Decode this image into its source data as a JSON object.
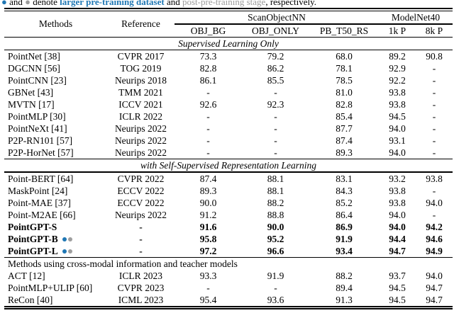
{
  "colors": {
    "accent_blue": "#1f77b4",
    "accent_gray": "#9e9e9e"
  },
  "caption": {
    "bullet1": "●",
    "seg1": " and ",
    "bullet2": "●",
    "seg2": " denote ",
    "highlight_blue": "larger pre-training dataset",
    "seg3": " and ",
    "highlight_gray": "post-pre-training stage",
    "seg4": ", respectively."
  },
  "header": {
    "methods": "Methods",
    "reference": "Reference",
    "group1": "ScanObjectNN",
    "group2": "ModelNet40",
    "subcols": [
      "OBJ_BG",
      "OBJ_ONLY",
      "PB_T50_RS",
      "1k P",
      "8k P"
    ]
  },
  "chart_data": {
    "type": "table",
    "columns": [
      "Methods",
      "Reference",
      "OBJ_BG",
      "OBJ_ONLY",
      "PB_T50_RS",
      "1k P",
      "8k P"
    ],
    "sections": [
      {
        "title": "Supervised Learning Only",
        "rows": [
          {
            "method": "PointNet [38]",
            "ref": "CVPR 2017",
            "vals": [
              "73.3",
              "79.2",
              "68.0",
              "89.2",
              "90.8"
            ]
          },
          {
            "method": "DGCNN [56]",
            "ref": "TOG 2019",
            "vals": [
              "82.8",
              "86.2",
              "78.1",
              "92.9",
              "-"
            ]
          },
          {
            "method": "PointCNN [23]",
            "ref": "Neurips 2018",
            "vals": [
              "86.1",
              "85.5",
              "78.5",
              "92.2",
              "-"
            ]
          },
          {
            "method": "GBNet [43]",
            "ref": "TMM 2021",
            "vals": [
              "-",
              "-",
              "81.0",
              "93.8",
              "-"
            ]
          },
          {
            "method": "MVTN [17]",
            "ref": "ICCV 2021",
            "vals": [
              "92.6",
              "92.3",
              "82.8",
              "93.8",
              "-"
            ]
          },
          {
            "method": "PointMLP [30]",
            "ref": "ICLR 2022",
            "vals": [
              "-",
              "-",
              "85.4",
              "94.5",
              "-"
            ]
          },
          {
            "method": "PointNeXt [41]",
            "ref": "Neurips 2022",
            "vals": [
              "-",
              "-",
              "87.7",
              "94.0",
              "-"
            ]
          },
          {
            "method": "P2P-RN101 [57]",
            "ref": "Neurips 2022",
            "vals": [
              "-",
              "-",
              "87.4",
              "93.1",
              "-"
            ]
          },
          {
            "method": "P2P-HorNet [57]",
            "ref": "Neurips 2022",
            "vals": [
              "-",
              "-",
              "89.3",
              "94.0",
              "-"
            ]
          }
        ]
      },
      {
        "title": "with Self-Supervised Representation Learning",
        "rows": [
          {
            "method": "Point-BERT [64]",
            "ref": "CVPR 2022",
            "vals": [
              "87.4",
              "88.1",
              "83.1",
              "93.2",
              "93.8"
            ]
          },
          {
            "method": "MaskPoint [24]",
            "ref": "ECCV 2022",
            "vals": [
              "89.3",
              "88.1",
              "84.3",
              "93.8",
              "-"
            ]
          },
          {
            "method": "Point-MAE [37]",
            "ref": "ECCV 2022",
            "vals": [
              "90.0",
              "88.2",
              "85.2",
              "93.8",
              "94.0"
            ]
          },
          {
            "method": "Point-M2AE [66]",
            "ref": "Neurips 2022",
            "vals": [
              "91.2",
              "88.8",
              "86.4",
              "94.0",
              "-"
            ]
          },
          {
            "method": "PointGPT-S",
            "ref": "-",
            "bold": true,
            "vals": [
              "91.6",
              "90.0",
              "86.9",
              "94.0",
              "94.2"
            ]
          },
          {
            "method": "PointGPT-B",
            "ref": "-",
            "bold": true,
            "dots": true,
            "vals": [
              "95.8",
              "95.2",
              "91.9",
              "94.4",
              "94.6"
            ]
          },
          {
            "method": "PointGPT-L",
            "ref": "-",
            "bold": true,
            "dots": true,
            "vals": [
              "97.2",
              "96.6",
              "93.4",
              "94.7",
              "94.9"
            ]
          }
        ]
      },
      {
        "title": "Methods using cross-modal information and teacher models",
        "rows": [
          {
            "method": "ACT [12]",
            "ref": "ICLR 2023",
            "vals": [
              "93.3",
              "91.9",
              "88.2",
              "93.7",
              "94.0"
            ]
          },
          {
            "method": "PointMLP+ULIP [60]",
            "ref": "CVPR 2023",
            "vals": [
              "-",
              "-",
              "89.4",
              "94.5",
              "94.7"
            ]
          },
          {
            "method": "ReCon [40]",
            "ref": "ICML 2023",
            "vals": [
              "95.4",
              "93.6",
              "91.3",
              "94.5",
              "94.7"
            ]
          }
        ]
      }
    ]
  }
}
